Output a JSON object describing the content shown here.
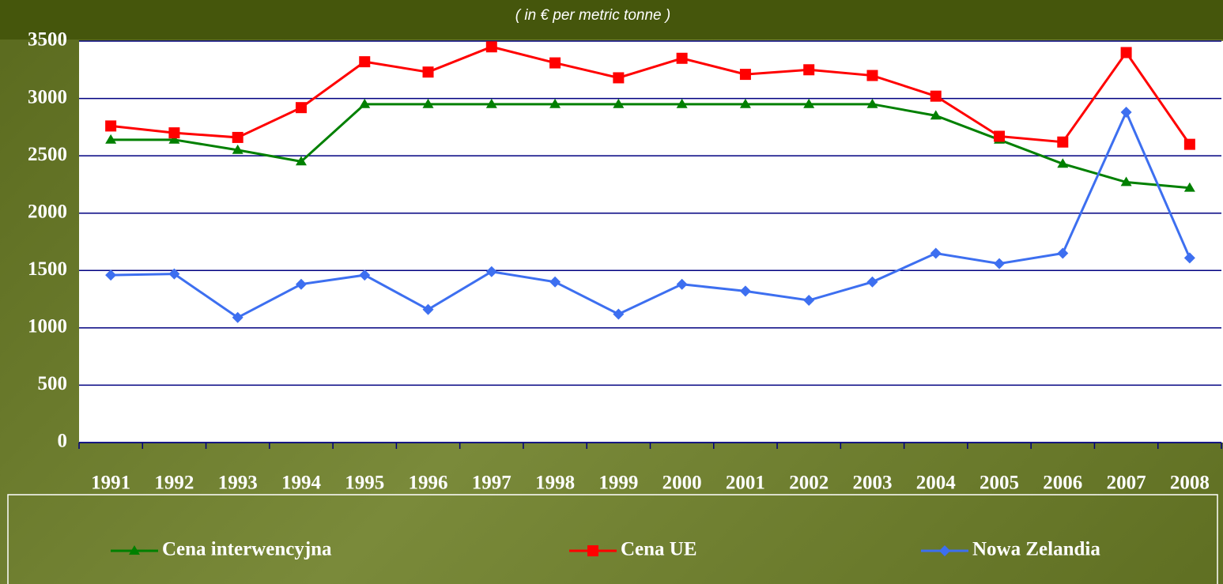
{
  "chart_data": {
    "type": "line",
    "subtitle": "( in € per metric tonne )",
    "categories": [
      "1991",
      "1992",
      "1993",
      "1994",
      "1995",
      "1996",
      "1997",
      "1998",
      "1999",
      "2000",
      "2001",
      "2002",
      "2003",
      "2004",
      "2005",
      "2006",
      "2007",
      "2008"
    ],
    "series": [
      {
        "name": "Cena interwencyjna",
        "color": "#008000",
        "marker": "triangle",
        "values": [
          2640,
          2640,
          2550,
          2450,
          2950,
          2950,
          2950,
          2950,
          2950,
          2950,
          2950,
          2950,
          2950,
          2850,
          2640,
          2430,
          2270,
          2220
        ]
      },
      {
        "name": "Cena UE",
        "color": "#ff0000",
        "marker": "square",
        "values": [
          2760,
          2700,
          2660,
          2920,
          3320,
          3230,
          3450,
          3310,
          3180,
          3350,
          3210,
          3250,
          3200,
          3020,
          2670,
          2620,
          3400,
          2600
        ]
      },
      {
        "name": "Nowa Zelandia",
        "color": "#3d6ff0",
        "marker": "diamond",
        "values": [
          1460,
          1470,
          1090,
          1380,
          1460,
          1160,
          1490,
          1400,
          1120,
          1380,
          1320,
          1240,
          1400,
          1650,
          1560,
          1650,
          2880,
          1610
        ]
      }
    ],
    "ylim": [
      0,
      3500
    ],
    "yticks": [
      0,
      500,
      1000,
      1500,
      2000,
      2500,
      3000,
      3500
    ],
    "grid": true,
    "legend": "bottom"
  }
}
